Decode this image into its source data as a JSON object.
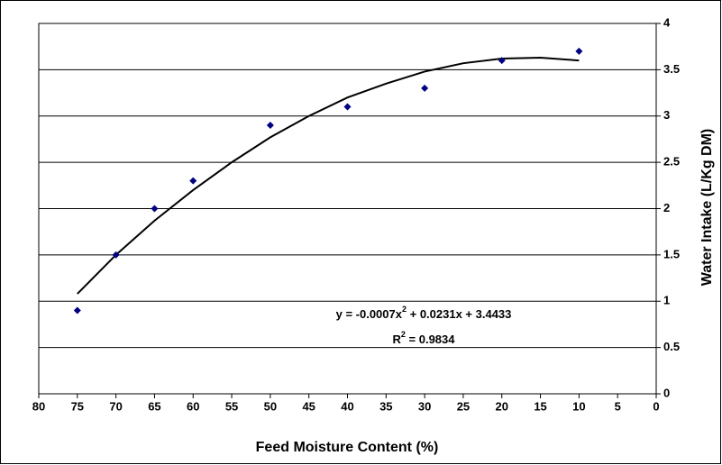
{
  "chart_data": {
    "type": "scatter",
    "xlabel": "Feed Moisture Content (%)",
    "ylabel": "Water Intake (L/Kg DM)",
    "x_reversed": true,
    "y_axis_side": "right",
    "grid": true,
    "series": [
      {
        "name": null,
        "color": "#000080",
        "x": [
          75,
          70,
          65,
          60,
          50,
          40,
          30,
          20,
          10
        ],
        "values": [
          0.9,
          1.5,
          2.0,
          2.3,
          2.9,
          3.1,
          3.3,
          3.6,
          3.7
        ]
      }
    ],
    "trendline": {
      "color": "#000000",
      "x": [
        75,
        70,
        65,
        60,
        55,
        50,
        45,
        40,
        35,
        30,
        25,
        20,
        15,
        10
      ],
      "values": [
        1.08,
        1.5,
        1.87,
        2.2,
        2.5,
        2.77,
        3.0,
        3.2,
        3.35,
        3.48,
        3.57,
        3.62,
        3.63,
        3.6
      ]
    },
    "equation": [
      "y = -0.0007x",
      "2",
      " + 0.0231x + 3.4433"
    ],
    "r_squared": [
      "R",
      "2",
      " = 0.9834"
    ],
    "xlim": [
      80,
      0
    ],
    "xticks": [
      80,
      75,
      70,
      65,
      60,
      55,
      50,
      45,
      40,
      35,
      30,
      25,
      20,
      15,
      10,
      5,
      0
    ],
    "ylim": [
      0,
      4
    ],
    "yticks": [
      0,
      0.5,
      1,
      1.5,
      2,
      2.5,
      3,
      3.5,
      4
    ]
  }
}
